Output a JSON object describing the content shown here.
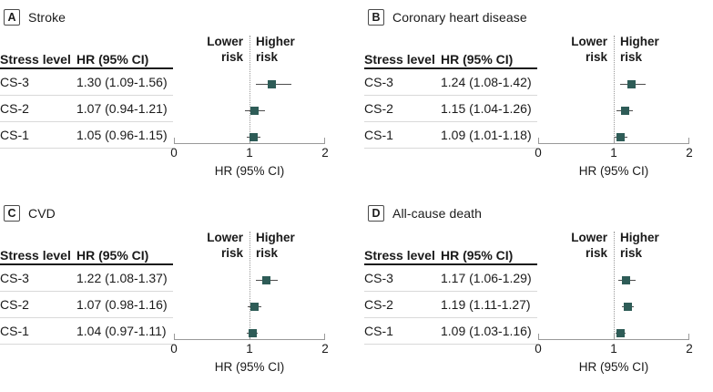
{
  "colors": {
    "marker": "#2e5c57",
    "ci_line": "#4d4d4d",
    "axis_line": "#999999",
    "reference_line": "#999999",
    "header_rule": "#1a1a1a",
    "row_rule": "#d9d9d9",
    "text": "#1a1a1a"
  },
  "table_headers": {
    "stress": "Stress level",
    "hr": "HR (95% CI)"
  },
  "figure": {
    "xlabel": "HR (95% CI)",
    "axis_ticks": [
      "0",
      "1",
      "2"
    ],
    "lower_risk": "Lower risk",
    "higher_risk": "Higher risk"
  },
  "panels": [
    {
      "label": "A",
      "title": "Stroke",
      "rows": [
        {
          "level": "CS-3",
          "hr_text": "1.30 (1.09-1.56)"
        },
        {
          "level": "CS-2",
          "hr_text": "1.07 (0.94-1.21)"
        },
        {
          "level": "CS-1",
          "hr_text": "1.05 (0.96-1.15)"
        }
      ]
    },
    {
      "label": "B",
      "title": "Coronary heart disease",
      "rows": [
        {
          "level": "CS-3",
          "hr_text": "1.24 (1.08-1.42)"
        },
        {
          "level": "CS-2",
          "hr_text": "1.15 (1.04-1.26)"
        },
        {
          "level": "CS-1",
          "hr_text": "1.09 (1.01-1.18)"
        }
      ]
    },
    {
      "label": "C",
      "title": "CVD",
      "rows": [
        {
          "level": "CS-3",
          "hr_text": "1.22 (1.08-1.37)"
        },
        {
          "level": "CS-2",
          "hr_text": "1.07 (0.98-1.16)"
        },
        {
          "level": "CS-1",
          "hr_text": "1.04 (0.97-1.11)"
        }
      ]
    },
    {
      "label": "D",
      "title": "All-cause death",
      "rows": [
        {
          "level": "CS-3",
          "hr_text": "1.17 (1.06-1.29)"
        },
        {
          "level": "CS-2",
          "hr_text": "1.19 (1.11-1.27)"
        },
        {
          "level": "CS-1",
          "hr_text": "1.09 (1.03-1.16)"
        }
      ]
    }
  ],
  "chart_data": [
    {
      "type": "scatter",
      "subtype": "forest",
      "panel_label": "A",
      "title": "Stroke",
      "categories": [
        "CS-3",
        "CS-2",
        "CS-1"
      ],
      "series": [
        {
          "name": "Hazard ratio",
          "values": [
            1.3,
            1.07,
            1.05
          ]
        }
      ],
      "ci_lower": [
        1.09,
        0.94,
        0.96
      ],
      "ci_upper": [
        1.56,
        1.21,
        1.15
      ],
      "xlabel": "HR (95% CI)",
      "xlim": [
        0,
        2
      ],
      "reference_line": 1,
      "annotations": [
        "Lower risk",
        "Higher risk"
      ],
      "grid": false,
      "legend": false
    },
    {
      "type": "scatter",
      "subtype": "forest",
      "panel_label": "B",
      "title": "Coronary heart disease",
      "categories": [
        "CS-3",
        "CS-2",
        "CS-1"
      ],
      "series": [
        {
          "name": "Hazard ratio",
          "values": [
            1.24,
            1.15,
            1.09
          ]
        }
      ],
      "ci_lower": [
        1.08,
        1.04,
        1.01
      ],
      "ci_upper": [
        1.42,
        1.26,
        1.18
      ],
      "xlabel": "HR (95% CI)",
      "xlim": [
        0,
        2
      ],
      "reference_line": 1,
      "annotations": [
        "Lower risk",
        "Higher risk"
      ],
      "grid": false,
      "legend": false
    },
    {
      "type": "scatter",
      "subtype": "forest",
      "panel_label": "C",
      "title": "CVD",
      "categories": [
        "CS-3",
        "CS-2",
        "CS-1"
      ],
      "series": [
        {
          "name": "Hazard ratio",
          "values": [
            1.22,
            1.07,
            1.04
          ]
        }
      ],
      "ci_lower": [
        1.08,
        0.98,
        0.97
      ],
      "ci_upper": [
        1.37,
        1.16,
        1.11
      ],
      "xlabel": "HR (95% CI)",
      "xlim": [
        0,
        2
      ],
      "reference_line": 1,
      "annotations": [
        "Lower risk",
        "Higher risk"
      ],
      "grid": false,
      "legend": false
    },
    {
      "type": "scatter",
      "subtype": "forest",
      "panel_label": "D",
      "title": "All-cause death",
      "categories": [
        "CS-3",
        "CS-2",
        "CS-1"
      ],
      "series": [
        {
          "name": "Hazard ratio",
          "values": [
            1.17,
            1.19,
            1.09
          ]
        }
      ],
      "ci_lower": [
        1.06,
        1.11,
        1.03
      ],
      "ci_upper": [
        1.29,
        1.27,
        1.16
      ],
      "xlabel": "HR (95% CI)",
      "xlim": [
        0,
        2
      ],
      "reference_line": 1,
      "annotations": [
        "Lower risk",
        "Higher risk"
      ],
      "grid": false,
      "legend": false
    }
  ]
}
